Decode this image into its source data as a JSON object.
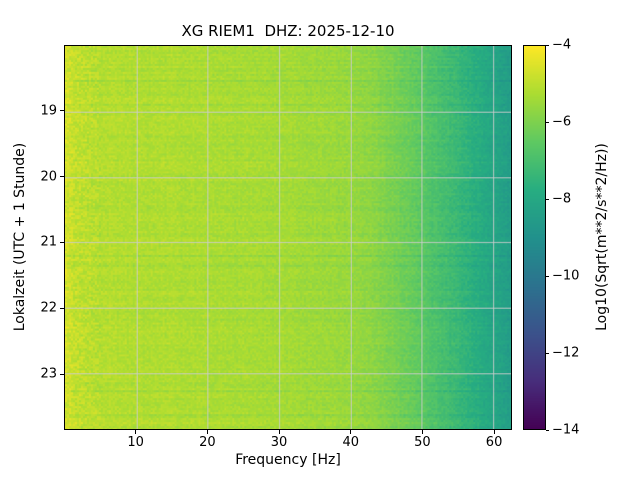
{
  "chart_data": {
    "type": "heatmap",
    "title": "XG RIEM1  DHZ: 2025-12-10",
    "xlabel": "Frequency [Hz]",
    "ylabel": "Lokalzeit (UTC + 1 Stunde)",
    "x_range": [
      0,
      62.5
    ],
    "x_ticks": [
      10,
      20,
      30,
      40,
      50,
      60
    ],
    "x_tick_labels": [
      "10",
      "20",
      "30",
      "40",
      "50",
      "60"
    ],
    "y_range": [
      18.0,
      23.85
    ],
    "y_ticks": [
      19,
      20,
      21,
      22,
      23
    ],
    "y_tick_labels": [
      "19",
      "20",
      "21",
      "22",
      "23"
    ],
    "grid": true,
    "colorbar": {
      "label": "Log10(Sqrt(m**2/s**2/Hz))",
      "range": [
        -14,
        -4
      ],
      "ticks": [
        -4,
        -6,
        -8,
        -10,
        -12,
        -14
      ],
      "tick_labels": [
        "−4",
        "−6",
        "−8",
        "−10",
        "−12",
        "−14"
      ],
      "colormap": "viridis",
      "colors": [
        "#440154",
        "#472d7b",
        "#3b528b",
        "#2c728e",
        "#21918c",
        "#27ad81",
        "#5ec962",
        "#aadc32",
        "#fde725"
      ],
      "position": "right"
    },
    "spectrum_profile": {
      "description": "Mean Log10(Sqrt(m**2/s**2/Hz)) vs frequency; nearly flat yellow-green band below ~40 Hz, falling to teal above ~45 Hz",
      "frequency_hz": [
        0,
        0.5,
        2,
        5,
        10,
        15,
        20,
        25,
        30,
        35,
        40,
        43,
        46,
        49,
        52,
        55,
        58,
        60,
        62.5
      ],
      "log10_value": [
        -4.6,
        -4.75,
        -4.95,
        -5.1,
        -5.15,
        -5.2,
        -5.25,
        -5.3,
        -5.35,
        -5.45,
        -5.55,
        -5.75,
        -6.05,
        -6.45,
        -6.9,
        -7.35,
        -7.8,
        -8.1,
        -8.5
      ]
    },
    "noise_amplitude": 0.45
  }
}
